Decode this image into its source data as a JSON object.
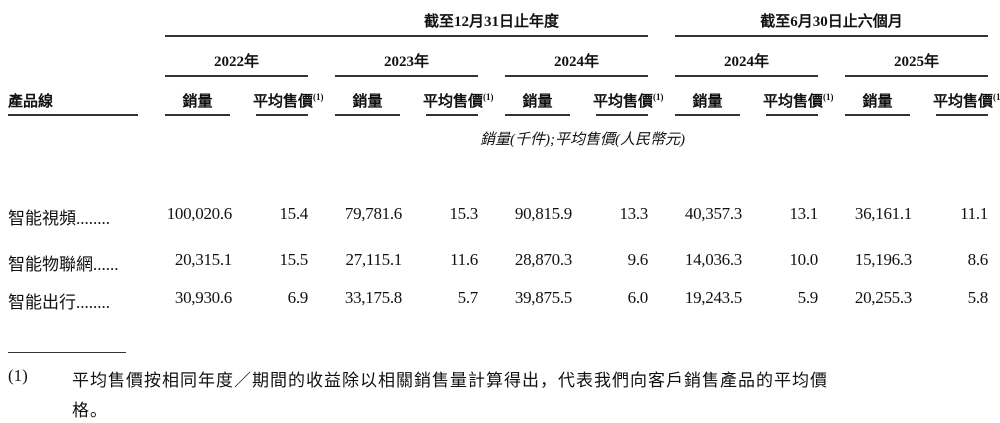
{
  "header": {
    "group_annual": "截至12月31日止年度",
    "group_interim": "截至6月30日止六個月",
    "product_line": "產品線",
    "years": [
      "2022年",
      "2023年",
      "2024年",
      "2024年",
      "2025年"
    ],
    "volume": "銷量",
    "asp": "平均售價",
    "asp_note": "(1)",
    "unit_note": "銷量(千件);平均售價(人民幣元)"
  },
  "rows": [
    {
      "label": "智能視頻........",
      "values": [
        "100,020.6",
        "15.4",
        "79,781.6",
        "15.3",
        "90,815.9",
        "13.3",
        "40,357.3",
        "13.1",
        "36,161.1",
        "11.1"
      ]
    },
    {
      "label": "智能物聯網......",
      "values": [
        "20,315.1",
        "15.5",
        "27,115.1",
        "11.6",
        "28,870.3",
        "9.6",
        "14,036.3",
        "10.0",
        "15,196.3",
        "8.6"
      ]
    },
    {
      "label": "智能出行........",
      "values": [
        "30,930.6",
        "6.9",
        "33,175.8",
        "5.7",
        "39,875.5",
        "6.0",
        "19,243.5",
        "5.9",
        "20,255.3",
        "5.8"
      ]
    }
  ],
  "footnote": {
    "marker": "(1)",
    "line1": "平均售價按相同年度／期間的收益除以相關銷售量計算得出，代表我們向客戶銷售產品的平均價",
    "line2": "格。"
  }
}
